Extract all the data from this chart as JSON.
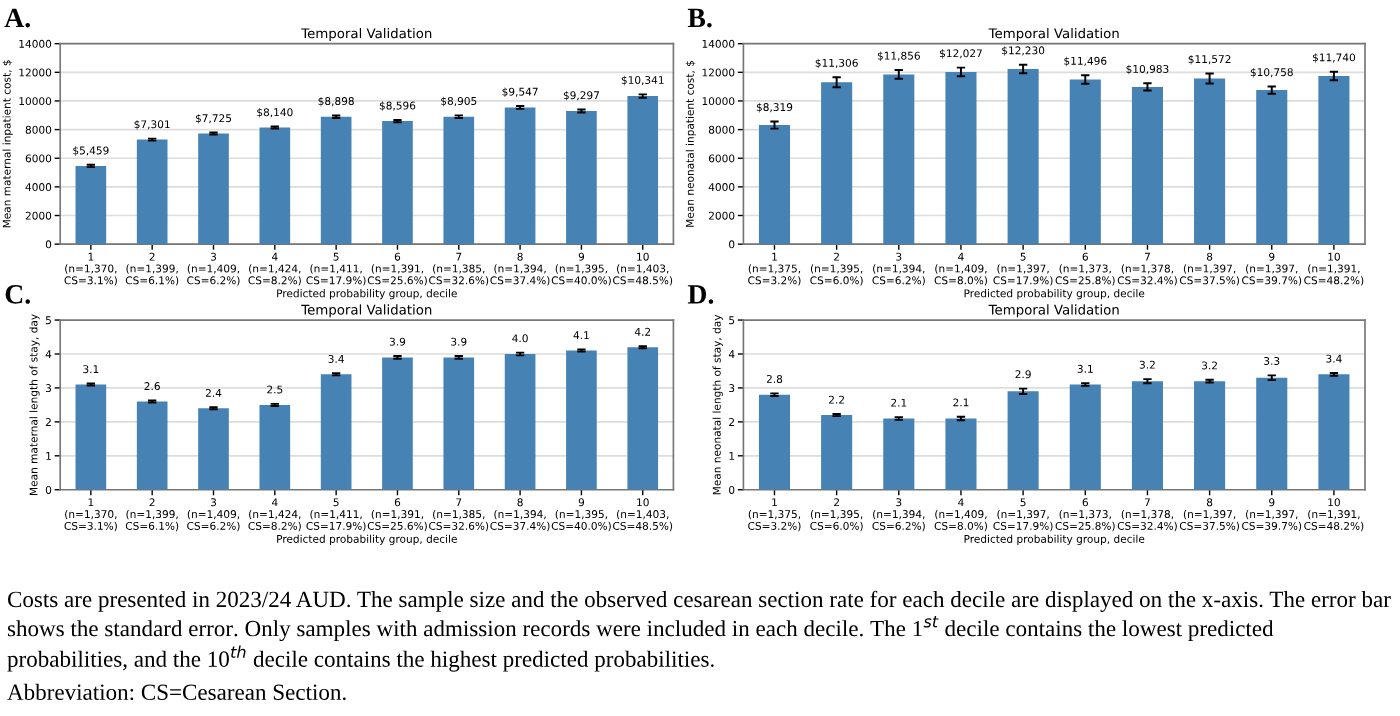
{
  "chart_data": [
    {
      "type": "bar",
      "title": "Temporal Validation",
      "annotations": [
        "A."
      ],
      "xlabel": "Predicted probability group, decile",
      "ylabel": "Mean maternal inpatient cost, $",
      "color": "#4682b4",
      "grid": "y",
      "ylim": [
        0,
        14000
      ],
      "yticks": [
        0,
        2000,
        4000,
        6000,
        8000,
        10000,
        12000,
        14000
      ],
      "categories": [
        "1\n(n=1,370,\nCS=3.1%)",
        "2\n(n=1,399,\nCS=6.1%)",
        "3\n(n=1,409,\nCS=6.2%)",
        "4\n(n=1,424,\nCS=8.2%)",
        "5\n(n=1,411,\nCS=17.9%)",
        "6\n(n=1,391,\nCS=25.6%)",
        "7\n(n=1,385,\nCS=32.6%)",
        "8\n(n=1,394,\nCS=37.4%)",
        "9\n(n=1,395,\nCS=40.0%)",
        "10\n(n=1,403,\nCS=48.5%)"
      ],
      "values": [
        5459,
        7301,
        7725,
        8140,
        8898,
        8596,
        8905,
        9547,
        9297,
        10341
      ],
      "errors": [
        80,
        70,
        70,
        70,
        90,
        80,
        90,
        100,
        100,
        120
      ],
      "value_labels": [
        "$5,459",
        "$7,301",
        "$7,725",
        "$8,140",
        "$8,898",
        "$8,596",
        "$8,905",
        "$9,547",
        "$9,297",
        "$10,341"
      ]
    },
    {
      "type": "bar",
      "title": "Temporal Validation",
      "annotations": [
        "B."
      ],
      "xlabel": "Predicted probability group, decile",
      "ylabel": "Mean neonatal inpatient cost, $",
      "color": "#4682b4",
      "grid": "y",
      "ylim": [
        0,
        14000
      ],
      "yticks": [
        0,
        2000,
        4000,
        6000,
        8000,
        10000,
        12000,
        14000
      ],
      "categories": [
        "1\n(n=1,375,\nCS=3.2%)",
        "2\n(n=1,395,\nCS=6.0%)",
        "3\n(n=1,394,\nCS=6.2%)",
        "4\n(n=1,409,\nCS=8.0%)",
        "5\n(n=1,397,\nCS=17.9%)",
        "6\n(n=1,373,\nCS=25.8%)",
        "7\n(n=1,378,\nCS=32.4%)",
        "8\n(n=1,397,\nCS=37.5%)",
        "9\n(n=1,397,\nCS=39.7%)",
        "10\n(n=1,391,\nCS=48.2%)"
      ],
      "values": [
        8319,
        11306,
        11856,
        12027,
        12230,
        11496,
        10983,
        11572,
        10758,
        11740
      ],
      "errors": [
        250,
        350,
        300,
        300,
        300,
        300,
        250,
        350,
        250,
        300
      ],
      "value_labels": [
        "$8,319",
        "$11,306",
        "$11,856",
        "$12,027",
        "$12,230",
        "$11,496",
        "$10,983",
        "$11,572",
        "$10,758",
        "$11,740"
      ]
    },
    {
      "type": "bar",
      "title": "Temporal Validation",
      "annotations": [
        "C."
      ],
      "xlabel": "Predicted probability group, decile",
      "ylabel": "Mean maternal length of stay, day",
      "color": "#4682b4",
      "grid": "y",
      "ylim": [
        0,
        5
      ],
      "yticks": [
        0,
        1,
        2,
        3,
        4,
        5
      ],
      "categories": [
        "1\n(n=1,370,\nCS=3.1%)",
        "2\n(n=1,399,\nCS=6.1%)",
        "3\n(n=1,409,\nCS=6.2%)",
        "4\n(n=1,424,\nCS=8.2%)",
        "5\n(n=1,411,\nCS=17.9%)",
        "6\n(n=1,391,\nCS=25.6%)",
        "7\n(n=1,385,\nCS=32.6%)",
        "8\n(n=1,394,\nCS=37.4%)",
        "9\n(n=1,395,\nCS=40.0%)",
        "10\n(n=1,403,\nCS=48.5%)"
      ],
      "values": [
        3.1,
        2.6,
        2.4,
        2.5,
        3.4,
        3.9,
        3.9,
        4.0,
        4.1,
        4.2
      ],
      "errors": [
        0.03,
        0.03,
        0.03,
        0.03,
        0.03,
        0.04,
        0.04,
        0.04,
        0.03,
        0.03
      ],
      "value_labels": [
        "3.1",
        "2.6",
        "2.4",
        "2.5",
        "3.4",
        "3.9",
        "3.9",
        "4.0",
        "4.1",
        "4.2"
      ]
    },
    {
      "type": "bar",
      "title": "Temporal Validation",
      "annotations": [
        "D."
      ],
      "xlabel": "Predicted probability group, decile",
      "ylabel": "Mean neonatal length of stay, day",
      "color": "#4682b4",
      "grid": "y",
      "ylim": [
        0,
        5
      ],
      "yticks": [
        0,
        1,
        2,
        3,
        4,
        5
      ],
      "categories": [
        "1\n(n=1,375,\nCS=3.2%)",
        "2\n(n=1,395,\nCS=6.0%)",
        "3\n(n=1,394,\nCS=6.2%)",
        "4\n(n=1,409,\nCS=8.0%)",
        "5\n(n=1,397,\nCS=17.9%)",
        "6\n(n=1,373,\nCS=25.8%)",
        "7\n(n=1,378,\nCS=32.4%)",
        "8\n(n=1,397,\nCS=37.5%)",
        "9\n(n=1,397,\nCS=39.7%)",
        "10\n(n=1,391,\nCS=48.2%)"
      ],
      "values": [
        2.8,
        2.2,
        2.1,
        2.1,
        2.9,
        3.1,
        3.2,
        3.2,
        3.3,
        3.4
      ],
      "errors": [
        0.04,
        0.03,
        0.04,
        0.05,
        0.08,
        0.04,
        0.06,
        0.04,
        0.07,
        0.04
      ],
      "value_labels": [
        "2.8",
        "2.2",
        "2.1",
        "2.1",
        "2.9",
        "3.1",
        "3.2",
        "3.2",
        "3.3",
        "3.4"
      ]
    },
    {
      "type": "other",
      "annotations": [
        "Costs are presented in 2023/24 AUD. The sample size and the observed cesarean section rate for each decile are displayed on the x-axis. The error bar shows the standard error. Only samples with admission records were included in each decile. The 1$^{st}$ decile contains the lowest predicted probabilities, and the 10$^{th}$ decile contains the highest predicted probabilities.",
        "Abbreviation: CS=Cesarean Section."
      ]
    }
  ]
}
